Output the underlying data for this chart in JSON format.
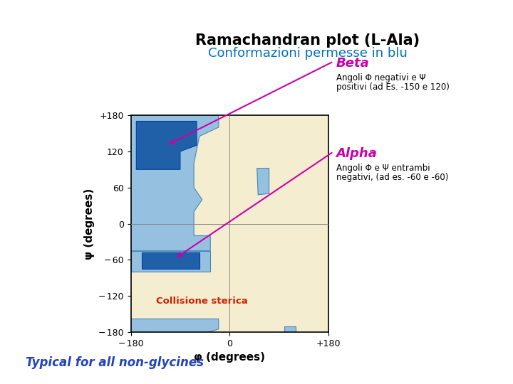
{
  "title": "Ramachandran plot (L-Ala)",
  "subtitle": "Conformazioni permesse in blu",
  "subtitle_color": "#0070C0",
  "title_fontsize": 15,
  "subtitle_fontsize": 13,
  "xlabel": "φ (degrees)",
  "ylabel": "ψ (degrees)",
  "bg_color": "#F5EDD0",
  "light_blue": "#96C0E0",
  "dark_blue": "#2060A8",
  "beta_label": "Beta",
  "beta_desc1": "Angoli Φ negativi e Ψ",
  "beta_desc2": "positivi (ad Es. -150 e 120)",
  "alpha_label": "Alpha",
  "alpha_desc1": "Angoli Φ e Ψ entrambi",
  "alpha_desc2": "negativi, (ad es. -60 e -60)",
  "collisione_label": "Collisione sterica",
  "bottom_label": "Typical for all non-glycines",
  "annotation_color": "#CC00AA",
  "collisione_color": "#CC2200",
  "bottom_label_color": "#2244BB"
}
